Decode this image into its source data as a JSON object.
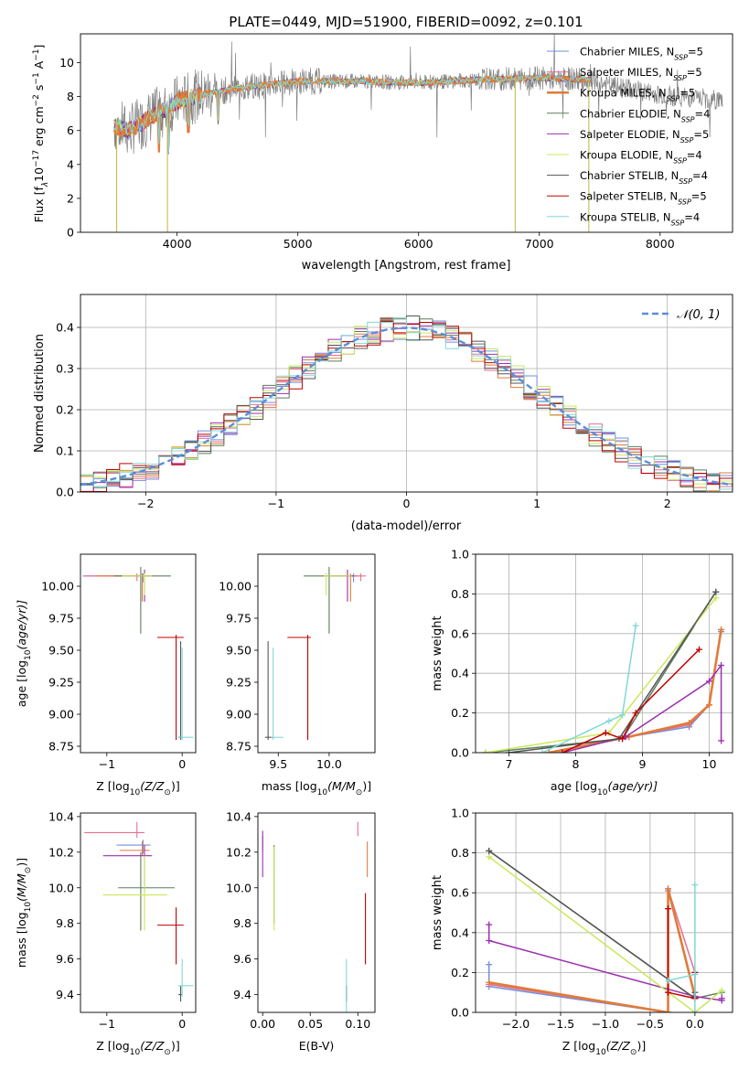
{
  "title": "PLATE=0449, MJD=51900, FIBERID=0092, z=0.101",
  "models": [
    {
      "name": "Chabrier MILES, N",
      "sub": "SSP",
      "n": "=5",
      "color": "#6f8fe0"
    },
    {
      "name": "Salpeter MILES, N",
      "sub": "SSP",
      "n": "=5",
      "color": "#e76f8f"
    },
    {
      "name": "Kroupa MILES, N",
      "sub": "SSP",
      "n": "=5",
      "color": "#e07b39"
    },
    {
      "name": "Chabrier ELODIE, N",
      "sub": "SSP",
      "n": "=4",
      "color": "#5b7d5b"
    },
    {
      "name": "Salpeter ELODIE, N",
      "sub": "SSP",
      "n": "=5",
      "color": "#9b2fae"
    },
    {
      "name": "Kroupa ELODIE, N",
      "sub": "SSP",
      "n": "=4",
      "color": "#c9e85c"
    },
    {
      "name": "Chabrier STELIB, N",
      "sub": "SSP",
      "n": "=4",
      "color": "#555555"
    },
    {
      "name": "Salpeter STELIB, N",
      "sub": "SSP",
      "n": "=5",
      "color": "#c00000"
    },
    {
      "name": "Kroupa STELIB, N",
      "sub": "SSP",
      "n": "=4",
      "color": "#80d8d8"
    }
  ],
  "chart_data": [
    {
      "id": "spectrum",
      "type": "line",
      "xlabel": "wavelength [Angstrom, rest frame]",
      "ylabel_parts": [
        "Flux [f",
        "λ",
        "10",
        "−17",
        " erg cm",
        "−2",
        " s",
        "−1",
        " A",
        "−1",
        "]"
      ],
      "xlim": [
        3200,
        8600
      ],
      "ylim": [
        0,
        11.7
      ],
      "xticks": [
        4000,
        5000,
        6000,
        7000,
        8000
      ],
      "yticks": [
        0,
        2,
        4,
        6,
        8,
        10
      ],
      "continuum": [
        [
          3480,
          6.3
        ],
        [
          3600,
          6.0
        ],
        [
          3700,
          6.4
        ],
        [
          3800,
          6.9
        ],
        [
          3900,
          7.2
        ],
        [
          4000,
          7.7
        ],
        [
          4200,
          8.1
        ],
        [
          4500,
          8.5
        ],
        [
          5000,
          8.9
        ],
        [
          5500,
          8.9
        ],
        [
          6000,
          8.8
        ],
        [
          6500,
          9.0
        ],
        [
          7000,
          9.1
        ],
        [
          7400,
          9.0
        ],
        [
          7600,
          8.6
        ],
        [
          7800,
          8.4
        ],
        [
          8000,
          8.1
        ],
        [
          8300,
          7.9
        ],
        [
          8500,
          7.8
        ]
      ]
    },
    {
      "id": "residuals",
      "type": "line",
      "xlabel": "(data-model)/error",
      "ylabel": "Normed distribution",
      "xlim": [
        -2.5,
        2.5
      ],
      "ylim": [
        0,
        0.48
      ],
      "xticks": [
        -2,
        -1,
        0,
        1,
        2
      ],
      "yticks": [
        0.0,
        0.1,
        0.2,
        0.3,
        0.4
      ],
      "legend": "𝒩(0, 1)",
      "legend_position": "top-right",
      "grid": true
    },
    {
      "id": "Z-age",
      "type": "scatter",
      "xlabel": "Z [log",
      "xlabel_sub": "10",
      "xlabel_tail": "(Z/Z",
      "ylabel": "age  [log",
      "ylabel_sub": "10",
      "ylabel_tail": "(age/yr)]",
      "xlim": [
        -1.35,
        0.18
      ],
      "ylim": [
        8.7,
        10.25
      ],
      "xticks": [
        -1,
        0
      ],
      "yticks": [
        8.75,
        9.0,
        9.25,
        9.5,
        9.75,
        10.0
      ],
      "points": [
        {
          "model": 0,
          "x": -0.52,
          "xerr": [
            0.8,
            0.1
          ],
          "y": 10.08,
          "yerr": [
            0.05,
            0.02
          ]
        },
        {
          "model": 1,
          "x": -0.6,
          "xerr": [
            0.7,
            0.1
          ],
          "y": 10.08,
          "yerr": [
            0.04,
            0.02
          ]
        },
        {
          "model": 2,
          "x": -0.53,
          "xerr": [
            0.6,
            0.1
          ],
          "y": 10.08,
          "yerr": [
            0.2,
            0.02
          ]
        },
        {
          "model": 3,
          "x": -0.55,
          "xerr": [
            0.35,
            0.4
          ],
          "y": 10.08,
          "yerr": [
            0.45,
            0.07
          ]
        },
        {
          "model": 4,
          "x": -0.5,
          "xerr": [
            0.2,
            0.1
          ],
          "y": 10.08,
          "yerr": [
            0.2,
            0.05
          ]
        },
        {
          "model": 5,
          "x": -0.5,
          "xerr": [
            0.3,
            0.1
          ],
          "y": 10.08,
          "yerr": [
            0.15,
            0.02
          ]
        },
        {
          "model": 6,
          "x": -0.02,
          "xerr": [
            0.03,
            0.02
          ],
          "y": 8.82,
          "yerr": [
            0.02,
            0.75
          ]
        },
        {
          "model": 7,
          "x": -0.08,
          "xerr": [
            0.25,
            0.1
          ],
          "y": 9.6,
          "yerr": [
            0.8,
            0.02
          ]
        },
        {
          "model": 8,
          "x": 0.0,
          "xerr": [
            0.05,
            0.15
          ],
          "y": 8.82,
          "yerr": [
            0.02,
            0.7
          ]
        }
      ]
    },
    {
      "id": "mass-age",
      "type": "scatter",
      "xlabel": "mass [log",
      "xlabel_sub": "10",
      "xlabel_tail": "(M/M",
      "xlim": [
        9.3,
        10.45
      ],
      "ylim": [
        8.7,
        10.25
      ],
      "xticks": [
        9.5,
        10.0
      ],
      "yticks": [
        8.75,
        9.0,
        9.25,
        9.5,
        9.75,
        10.0
      ],
      "points": [
        {
          "model": 0,
          "x": 10.24,
          "xerr": [
            0.2,
            0.05
          ],
          "y": 10.08,
          "yerr": [
            0.05,
            0.02
          ]
        },
        {
          "model": 1,
          "x": 10.31,
          "xerr": [
            0.1,
            0.05
          ],
          "y": 10.08,
          "yerr": [
            0.04,
            0.02
          ]
        },
        {
          "model": 2,
          "x": 10.21,
          "xerr": [
            0.1,
            0.06
          ],
          "y": 10.08,
          "yerr": [
            0.2,
            0.02
          ]
        },
        {
          "model": 3,
          "x": 10.0,
          "xerr": [
            0.25,
            0.2
          ],
          "y": 10.08,
          "yerr": [
            0.45,
            0.07
          ]
        },
        {
          "model": 4,
          "x": 10.18,
          "xerr": [
            0.2,
            0.06
          ],
          "y": 10.08,
          "yerr": [
            0.2,
            0.05
          ]
        },
        {
          "model": 5,
          "x": 9.97,
          "xerr": [
            0.02,
            0.25
          ],
          "y": 10.08,
          "yerr": [
            0.15,
            0.02
          ]
        },
        {
          "model": 6,
          "x": 9.4,
          "xerr": [
            0.03,
            0.05
          ],
          "y": 8.82,
          "yerr": [
            0.02,
            0.75
          ]
        },
        {
          "model": 7,
          "x": 9.79,
          "xerr": [
            0.2,
            0.03
          ],
          "y": 9.6,
          "yerr": [
            0.8,
            0.02
          ]
        },
        {
          "model": 8,
          "x": 9.45,
          "xerr": [
            0.02,
            0.1
          ],
          "y": 8.82,
          "yerr": [
            0.02,
            0.7
          ]
        }
      ]
    },
    {
      "id": "age-weight",
      "type": "line",
      "xlabel": "age  [log",
      "xlabel_sub": "10",
      "xlabel_tail": "(age/yr)]",
      "ylabel": "mass weight",
      "xlim": [
        6.5,
        10.35
      ],
      "ylim": [
        0,
        1.0
      ],
      "xticks": [
        7,
        8,
        9,
        10
      ],
      "yticks": [
        0.0,
        0.2,
        0.4,
        0.6,
        0.8,
        1.0
      ],
      "grid": true,
      "series": [
        {
          "model": 0,
          "x": [
            7.6,
            8.8,
            9.7,
            10.0,
            10.18
          ],
          "y": [
            0.0,
            0.08,
            0.13,
            0.24,
            0.61
          ]
        },
        {
          "model": 1,
          "x": [
            7.6,
            8.8,
            9.7,
            10.0,
            10.18
          ],
          "y": [
            0.0,
            0.08,
            0.14,
            0.24,
            0.62
          ]
        },
        {
          "model": 2,
          "x": [
            7.6,
            8.8,
            9.7,
            10.0,
            10.18
          ],
          "y": [
            0.0,
            0.08,
            0.15,
            0.24,
            0.62
          ]
        },
        {
          "model": 3,
          "x": [
            6.65,
            8.7,
            10.1
          ],
          "y": [
            0.0,
            0.07,
            0.81
          ]
        },
        {
          "model": 4,
          "x": [
            7.8,
            8.75,
            10.0,
            10.18,
            10.18
          ],
          "y": [
            0.0,
            0.08,
            0.36,
            0.44,
            0.06
          ]
        },
        {
          "model": 5,
          "x": [
            6.65,
            8.5,
            10.1
          ],
          "y": [
            0.0,
            0.1,
            0.78
          ]
        },
        {
          "model": 6,
          "x": [
            7.0,
            8.65,
            10.1
          ],
          "y": [
            0.0,
            0.07,
            0.81
          ]
        },
        {
          "model": 7,
          "x": [
            7.8,
            8.45,
            8.7,
            8.9,
            9.85
          ],
          "y": [
            0.0,
            0.1,
            0.07,
            0.2,
            0.52
          ]
        },
        {
          "model": 8,
          "x": [
            7.5,
            8.5,
            8.7,
            8.9
          ],
          "y": [
            0.0,
            0.16,
            0.19,
            0.64
          ]
        }
      ]
    },
    {
      "id": "Z-mass",
      "type": "scatter",
      "xlabel": "Z [log",
      "xlabel_sub": "10",
      "xlabel_tail": "(Z/Z",
      "ylabel": "mass [log",
      "ylabel_sub": "10",
      "ylabel_tail": "(M/M",
      "xlim": [
        -1.35,
        0.18
      ],
      "ylim": [
        9.3,
        10.42
      ],
      "xticks": [
        -1,
        0
      ],
      "yticks": [
        9.4,
        9.6,
        9.8,
        10.0,
        10.2,
        10.4
      ],
      "points": [
        {
          "model": 0,
          "x": -0.52,
          "xerr": [
            0.35,
            0.1
          ],
          "y": 10.24,
          "yerr": [
            0.05,
            0.03
          ]
        },
        {
          "model": 1,
          "x": -0.6,
          "xerr": [
            0.7,
            0.1
          ],
          "y": 10.31,
          "yerr": [
            0.03,
            0.06
          ]
        },
        {
          "model": 2,
          "x": -0.53,
          "xerr": [
            0.3,
            0.1
          ],
          "y": 10.21,
          "yerr": [
            0.03,
            0.05
          ]
        },
        {
          "model": 3,
          "x": -0.55,
          "xerr": [
            0.3,
            0.45
          ],
          "y": 10.0,
          "yerr": [
            0.24,
            0.2
          ]
        },
        {
          "model": 4,
          "x": -0.5,
          "xerr": [
            0.55,
            0.1
          ],
          "y": 10.18,
          "yerr": [
            0.2,
            0.06
          ]
        },
        {
          "model": 5,
          "x": -0.5,
          "xerr": [
            0.55,
            0.3
          ],
          "y": 9.96,
          "yerr": [
            0.2,
            0.22
          ]
        },
        {
          "model": 6,
          "x": -0.02,
          "xerr": [
            0.03,
            0.02
          ],
          "y": 9.4,
          "yerr": [
            0.04,
            0.05
          ]
        },
        {
          "model": 7,
          "x": -0.08,
          "xerr": [
            0.25,
            0.1
          ],
          "y": 9.79,
          "yerr": [
            0.22,
            0.1
          ]
        },
        {
          "model": 8,
          "x": 0.0,
          "xerr": [
            0.05,
            0.15
          ],
          "y": 9.45,
          "yerr": [
            0.06,
            0.15
          ]
        }
      ]
    },
    {
      "id": "EBV-mass",
      "type": "scatter",
      "xlabel": "E(B-V)",
      "xlim": [
        -0.005,
        0.118
      ],
      "ylim": [
        9.3,
        10.42
      ],
      "xticks": [
        0.0,
        0.05,
        0.1
      ],
      "xticklabels": [
        "0.00",
        "0.05",
        "0.10"
      ],
      "yticks": [
        9.4,
        9.6,
        9.8,
        10.0,
        10.2,
        10.4
      ],
      "points": [
        {
          "model": 0,
          "x": 0.0,
          "y": 10.24,
          "yerr": [
            0.03,
            0.05
          ]
        },
        {
          "model": 1,
          "x": 0.1,
          "y": 10.31,
          "yerr": [
            0.02,
            0.06
          ]
        },
        {
          "model": 2,
          "x": 0.11,
          "y": 10.21,
          "yerr": [
            0.15,
            0.05
          ]
        },
        {
          "model": 3,
          "x": 0.012,
          "y": 10.0,
          "yerr": [
            0.2,
            0.24
          ]
        },
        {
          "model": 4,
          "x": 0.0,
          "y": 10.18,
          "yerr": [
            0.12,
            0.14
          ]
        },
        {
          "model": 5,
          "x": 0.012,
          "y": 9.96,
          "yerr": [
            0.2,
            0.27
          ]
        },
        {
          "model": 6,
          "x": 0.088,
          "y": 9.4,
          "yerr": [
            0.04,
            0.05
          ]
        },
        {
          "model": 7,
          "x": 0.108,
          "y": 9.79,
          "yerr": [
            0.22,
            0.18
          ]
        },
        {
          "model": 8,
          "x": 0.088,
          "y": 9.45,
          "yerr": [
            0.15,
            0.15
          ]
        }
      ]
    },
    {
      "id": "Z-weight",
      "type": "line",
      "xlabel": "Z [log",
      "xlabel_sub": "10",
      "xlabel_tail": "(Z/Z",
      "ylabel": "mass weight",
      "xlim": [
        -2.45,
        0.42
      ],
      "ylim": [
        0,
        1.0
      ],
      "xticks": [
        -2.0,
        -1.5,
        -1.0,
        -0.5,
        0.0
      ],
      "yticks": [
        0.0,
        0.2,
        0.4,
        0.6,
        0.8,
        1.0
      ],
      "grid": true,
      "series": [
        {
          "model": 0,
          "x": [
            -2.3,
            -2.3,
            -0.3,
            -0.3,
            0.0
          ],
          "y": [
            0.24,
            0.13,
            0.0,
            0.61,
            0.08
          ]
        },
        {
          "model": 1,
          "x": [
            -2.3,
            -0.3,
            -0.3,
            0.0
          ],
          "y": [
            0.14,
            0.0,
            0.62,
            0.2
          ]
        },
        {
          "model": 2,
          "x": [
            -2.3,
            -0.3,
            -0.3,
            0.0
          ],
          "y": [
            0.15,
            0.0,
            0.62,
            0.08
          ]
        },
        {
          "model": 3,
          "x": [
            -2.3,
            0.0,
            0.3
          ],
          "y": [
            0.81,
            0.07,
            0.1
          ]
        },
        {
          "model": 4,
          "x": [
            -2.3,
            -2.3,
            0.0,
            0.3,
            0.3
          ],
          "y": [
            0.44,
            0.36,
            0.08,
            0.06,
            0.07
          ]
        },
        {
          "model": 5,
          "x": [
            -2.3,
            0.0,
            0.3
          ],
          "y": [
            0.78,
            0.0,
            0.11
          ]
        },
        {
          "model": 6,
          "x": [
            -2.3,
            0.0,
            0.0
          ],
          "y": [
            0.81,
            0.07,
            0.1
          ]
        },
        {
          "model": 7,
          "x": [
            -0.3,
            -0.3,
            0.0,
            0.0
          ],
          "y": [
            0.52,
            0.1,
            0.07,
            0.2
          ]
        },
        {
          "model": 8,
          "x": [
            -0.3,
            0.0,
            0.0,
            0.0
          ],
          "y": [
            0.16,
            0.19,
            0.64,
            0.0
          ]
        }
      ]
    }
  ]
}
